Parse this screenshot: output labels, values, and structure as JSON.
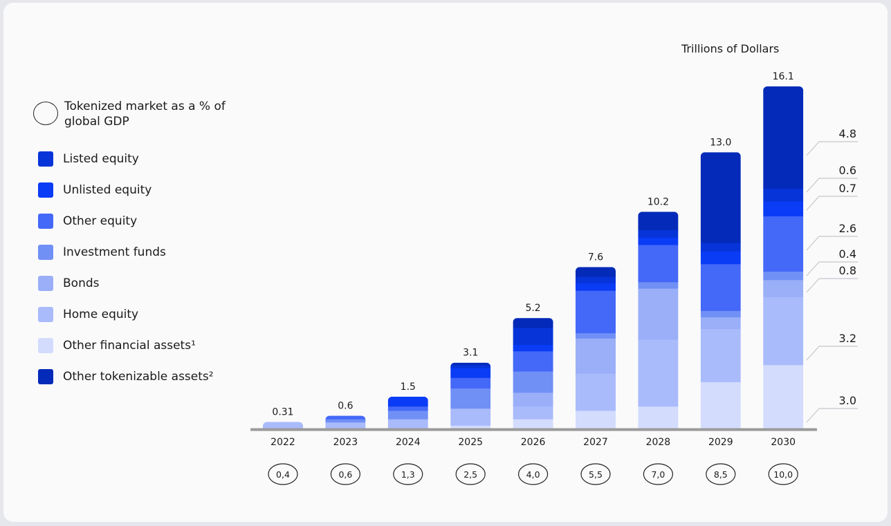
{
  "chart_data": {
    "type": "bar",
    "stacked": true,
    "unit_label": "Trillions of Dollars",
    "categories": [
      "2022",
      "2023",
      "2024",
      "2025",
      "2026",
      "2027",
      "2028",
      "2029",
      "2030"
    ],
    "totals": [
      "0.31",
      "0.6",
      "1.5",
      "3.1",
      "5.2",
      "7.6",
      "10.2",
      "13.0",
      "16.1"
    ],
    "gdp_share_label": "Tokenized market as a % of global GDP",
    "gdp_share": [
      "0,4",
      "0,6",
      "1,3",
      "2,5",
      "4,0",
      "5,5",
      "7,0",
      "8,5",
      "10,0"
    ],
    "series": [
      {
        "name": "Other financial assets¹",
        "color": "#d3dcfd",
        "values": [
          0,
          0,
          0,
          0.15,
          0.45,
          0.85,
          1.05,
          2.2,
          3.0
        ]
      },
      {
        "name": "Home equity",
        "color": "#a9bbfb",
        "values": [
          0.31,
          0.3,
          0.45,
          0.8,
          0.6,
          1.75,
          3.15,
          2.5,
          3.2
        ]
      },
      {
        "name": "Bonds",
        "color": "#9aaff8",
        "values": [
          0,
          0,
          0,
          0,
          0.65,
          1.65,
          2.4,
          0.55,
          0.8
        ]
      },
      {
        "name": "Investment funds",
        "color": "#7090f6",
        "values": [
          0,
          0.15,
          0.4,
          0.95,
          1.0,
          0.25,
          0.3,
          0.3,
          0.4
        ]
      },
      {
        "name": "Other equity",
        "color": "#4468f7",
        "values": [
          0,
          0.15,
          0.2,
          0.5,
          0.95,
          2.0,
          1.75,
          2.2,
          2.6
        ]
      },
      {
        "name": "Unlisted equity",
        "color": "#0a3cf6",
        "values": [
          0,
          0,
          0.45,
          0.45,
          0.3,
          0.35,
          0.35,
          0.6,
          0.7
        ]
      },
      {
        "name": "Listed equity",
        "color": "#0634d8",
        "values": [
          0,
          0,
          0,
          0.15,
          0.8,
          0.3,
          0.35,
          0.4,
          0.6
        ]
      },
      {
        "name": "Other tokenizable assets²",
        "color": "#032ab9",
        "values": [
          0,
          0,
          0,
          0.1,
          0.45,
          0.45,
          0.85,
          4.25,
          4.8
        ]
      }
    ],
    "last_bar_labels": [
      "3.0",
      "3.2",
      "0.8",
      "0.4",
      "2.6",
      "0.7",
      "0.6",
      "4.8"
    ],
    "legend_order": [
      "Listed equity",
      "Unlisted equity",
      "Other equity",
      "Investment funds",
      "Bonds",
      "Home equity",
      "Other financial assets¹",
      "Other tokenizable assets²"
    ],
    "legend_colors": [
      "#0634d8",
      "#0a3cf6",
      "#4468f7",
      "#7090f6",
      "#9aaff8",
      "#a9bbfb",
      "#d3dcfd",
      "#032ab9"
    ],
    "ylim": [
      0,
      16.1
    ],
    "legend_placement": "left"
  }
}
